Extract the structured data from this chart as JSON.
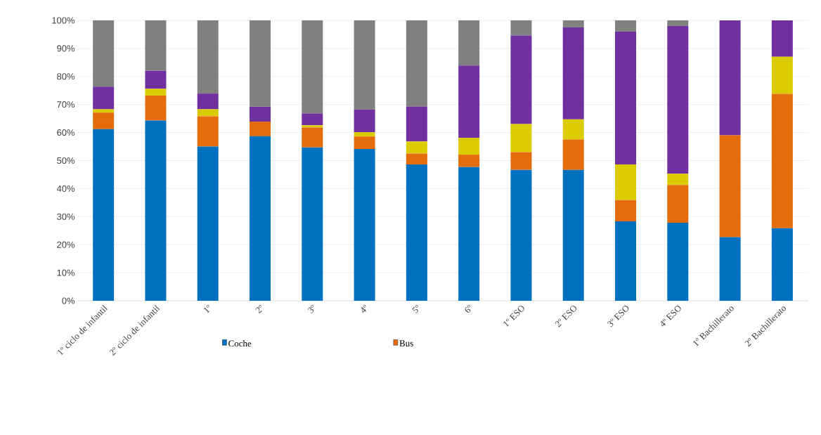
{
  "chart_data": {
    "type": "bar",
    "stacked": true,
    "grid": "y",
    "legend": "bottom",
    "categories": [
      "1º ciclo de infantil",
      "2º ciclo de infantil",
      "1º",
      "2º",
      "3º",
      "4º",
      "5º",
      "6º",
      "1º ESO",
      "2º ESO",
      "3º ESO",
      "4º ESO",
      "1º Bachillerato",
      "2º Bachillerato"
    ],
    "ylim": [
      0,
      100
    ],
    "yticks": [
      {
        "value": 0,
        "label": "0%"
      },
      {
        "value": 10,
        "label": "10%"
      },
      {
        "value": 20,
        "label": "20%"
      },
      {
        "value": 30,
        "label": "30%"
      },
      {
        "value": 40,
        "label": "40%"
      },
      {
        "value": 50,
        "label": "50%"
      },
      {
        "value": 60,
        "label": "60%"
      },
      {
        "value": 70,
        "label": "70%"
      },
      {
        "value": 80,
        "label": "80%"
      },
      {
        "value": 90,
        "label": "90%"
      },
      {
        "value": 100,
        "label": "100%"
      }
    ],
    "series": [
      {
        "name": "Coche",
        "color": "#0070c0",
        "values": [
          61.2,
          64.3,
          55.0,
          58.7,
          54.7,
          54.1,
          48.6,
          47.7,
          46.7,
          46.7,
          28.3,
          27.8,
          22.7,
          25.9
        ]
      },
      {
        "name": "Bus",
        "color": "#e46c0a",
        "values": [
          5.9,
          8.9,
          10.8,
          5.2,
          7.1,
          4.5,
          3.9,
          4.4,
          6.3,
          10.8,
          7.6,
          13.5,
          36.3,
          47.9
        ]
      },
      {
        "color": "#dccb00",
        "values": [
          1.2,
          2.4,
          2.5,
          0,
          0.8,
          1.5,
          4.3,
          6.0,
          10.0,
          7.2,
          12.7,
          4.0,
          0,
          13.2
        ]
      },
      {
        "color": "#7030a0",
        "values": [
          8.1,
          6.4,
          5.6,
          5.3,
          4.2,
          8.1,
          12.5,
          25.8,
          31.6,
          32.8,
          47.4,
          52.7,
          41.0,
          13.0
        ]
      },
      {
        "color": "#808080",
        "values": [
          23.6,
          18.0,
          26.1,
          30.8,
          33.2,
          31.8,
          30.7,
          16.1,
          5.4,
          2.5,
          4.0,
          2.0,
          0,
          0
        ]
      }
    ]
  }
}
